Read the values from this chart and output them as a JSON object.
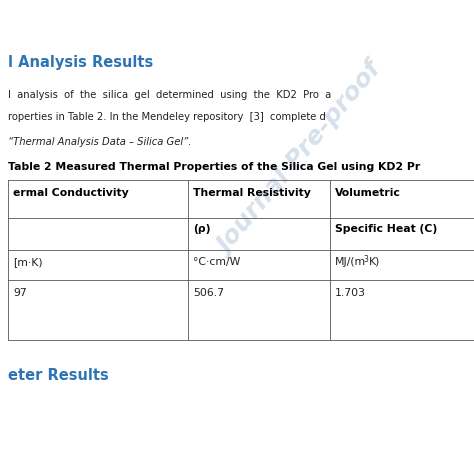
{
  "background_color": "#ffffff",
  "watermark_text": "Journal Pre-proof",
  "watermark_color": "#b0c4d8",
  "watermark_alpha": 0.5,
  "section_heading": "l Analysis Results",
  "heading_color": "#2e74b5",
  "heading_fontsize": 10.5,
  "body_line1": "l  analysis  of  the  silica  gel  determined  using  the  KD2  Pro  a",
  "body_line2": "roperties in Table 2. In the Mendeley repository  [3]  complete d",
  "italic_line": "“Thermal Analysis Data – Silica Gel”.",
  "table_title": "Table 2 Measured Thermal Properties of the Silica Gel using KD2 Pr",
  "table_title_fontsize": 7.8,
  "col_header1_row1": "ermal Conductivity",
  "col_header2_row1": "Thermal Resistivity",
  "col_header3_row1": "Volumetric",
  "col_header1_row2": "",
  "col_header2_row2": "(ρ)",
  "col_header3_row2": "Specific Heat (C)",
  "col1_unit": "[m·K)",
  "col2_unit": "°C·cm/W",
  "col3_unit_pre": "MJ/(m",
  "col3_unit_sup": "3",
  "col3_unit_post": "K)",
  "col1_val": "97",
  "col2_val": "506.7",
  "col3_val": "1.703",
  "footer_text": "eter Results",
  "footer_color": "#2e74b5",
  "footer_fontsize": 10.5,
  "line_color": "#555555",
  "text_color": "#222222",
  "bold_color": "#000000"
}
